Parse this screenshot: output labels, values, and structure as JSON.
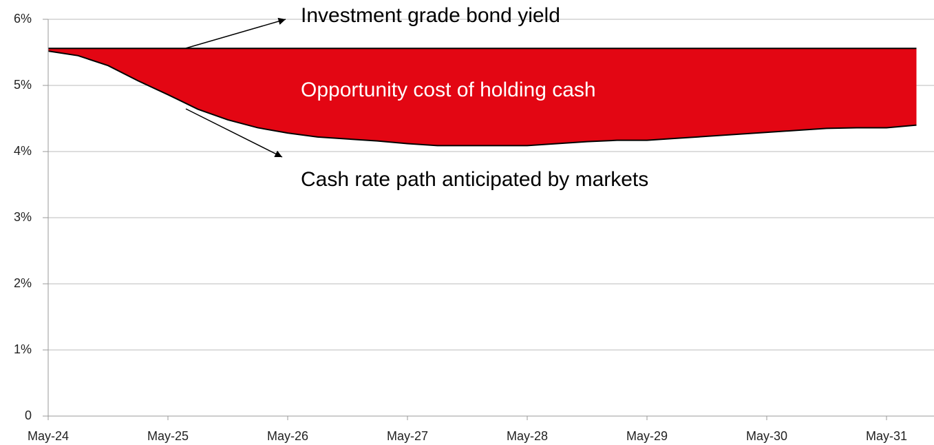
{
  "chart_data": {
    "type": "area-band",
    "categories": [
      "May-24",
      null,
      null,
      null,
      "May-25",
      null,
      null,
      null,
      "May-26",
      null,
      null,
      null,
      "May-27",
      null,
      null,
      null,
      "May-28",
      null,
      null,
      null,
      "May-29",
      null,
      null,
      null,
      "May-30",
      null,
      null,
      null,
      "May-31",
      null
    ],
    "series": [
      {
        "name": "Investment grade bond yield",
        "color": "#000000",
        "values": [
          5.56,
          5.56,
          5.56,
          5.56,
          5.56,
          5.56,
          5.56,
          5.56,
          5.56,
          5.56,
          5.56,
          5.56,
          5.56,
          5.56,
          5.56,
          5.56,
          5.56,
          5.56,
          5.56,
          5.56,
          5.56,
          5.56,
          5.56,
          5.56,
          5.56,
          5.56,
          5.56,
          5.56,
          5.56,
          5.56
        ]
      },
      {
        "name": "Cash rate path anticipated by markets",
        "color": "#000000",
        "values": [
          5.52,
          5.45,
          5.3,
          5.07,
          4.86,
          4.64,
          4.48,
          4.36,
          4.28,
          4.22,
          4.19,
          4.16,
          4.12,
          4.09,
          4.09,
          4.09,
          4.09,
          4.12,
          4.15,
          4.17,
          4.17,
          4.2,
          4.23,
          4.26,
          4.29,
          4.32,
          4.35,
          4.36,
          4.36,
          4.4
        ]
      }
    ],
    "fill_label": "Opportunity cost of holding cash",
    "fill_color": "#e30613",
    "ylim": [
      0,
      6
    ],
    "yticks": [
      0,
      {
        "value": 1,
        "label": "1%"
      },
      {
        "value": 2,
        "label": "2%"
      },
      {
        "value": 3,
        "label": "3%"
      },
      {
        "value": 4,
        "label": "4%"
      },
      {
        "value": 5,
        "label": "5%"
      },
      {
        "value": 6,
        "label": "6%"
      }
    ],
    "grid": true
  }
}
